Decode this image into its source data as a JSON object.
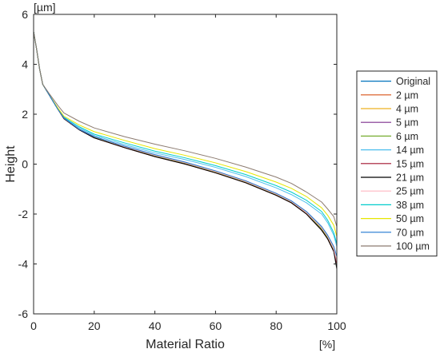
{
  "chart_data": {
    "type": "line",
    "xlabel": "Material Ratio",
    "ylabel": "Height",
    "x_unit": "[%]",
    "y_unit": "[µm]",
    "xlim": [
      0,
      100
    ],
    "ylim": [
      -6,
      6
    ],
    "xticks": [
      0,
      20,
      40,
      60,
      80,
      100
    ],
    "yticks": [
      -6,
      -4,
      -2,
      0,
      2,
      4,
      6
    ],
    "grid": false,
    "legend_position": "right",
    "x": [
      0,
      1,
      2,
      3,
      5,
      8,
      10,
      15,
      20,
      30,
      40,
      50,
      60,
      70,
      80,
      85,
      90,
      95,
      97,
      99,
      100
    ],
    "series": [
      {
        "name": "Original",
        "color": "#0072BD",
        "values": [
          5.3,
          4.6,
          3.8,
          3.2,
          2.8,
          2.2,
          1.85,
          1.4,
          1.1,
          0.7,
          0.35,
          0.05,
          -0.3,
          -0.7,
          -1.2,
          -1.5,
          -1.95,
          -2.55,
          -2.9,
          -3.4,
          -4.0
        ]
      },
      {
        "name": "2 µm",
        "color": "#D95319",
        "values": [
          5.3,
          4.6,
          3.8,
          3.2,
          2.8,
          2.2,
          1.85,
          1.4,
          1.1,
          0.7,
          0.35,
          0.05,
          -0.3,
          -0.7,
          -1.2,
          -1.5,
          -1.95,
          -2.55,
          -2.9,
          -3.4,
          -4.0
        ]
      },
      {
        "name": "4 µm",
        "color": "#EDB120",
        "values": [
          5.3,
          4.6,
          3.8,
          3.2,
          2.8,
          2.2,
          1.85,
          1.4,
          1.1,
          0.7,
          0.35,
          0.05,
          -0.3,
          -0.7,
          -1.2,
          -1.5,
          -1.95,
          -2.55,
          -2.9,
          -3.4,
          -4.0
        ]
      },
      {
        "name": "5 µm",
        "color": "#7E2F8E",
        "values": [
          5.3,
          4.6,
          3.8,
          3.2,
          2.8,
          2.2,
          1.82,
          1.38,
          1.08,
          0.68,
          0.33,
          0.02,
          -0.32,
          -0.72,
          -1.22,
          -1.52,
          -1.98,
          -2.6,
          -2.95,
          -3.45,
          -4.0
        ]
      },
      {
        "name": "6 µm",
        "color": "#77AC30",
        "values": [
          5.3,
          4.6,
          3.8,
          3.2,
          2.8,
          2.2,
          1.82,
          1.38,
          1.08,
          0.68,
          0.33,
          0.02,
          -0.32,
          -0.72,
          -1.22,
          -1.52,
          -1.98,
          -2.6,
          -2.95,
          -3.45,
          -4.0
        ]
      },
      {
        "name": "14 µm",
        "color": "#4DBEEE",
        "values": [
          5.3,
          4.6,
          3.8,
          3.2,
          2.8,
          2.2,
          1.85,
          1.45,
          1.15,
          0.78,
          0.45,
          0.18,
          -0.13,
          -0.5,
          -0.95,
          -1.22,
          -1.55,
          -2.0,
          -2.35,
          -2.85,
          -3.3
        ]
      },
      {
        "name": "15 µm",
        "color": "#A2142F",
        "values": [
          5.3,
          4.6,
          3.8,
          3.2,
          2.8,
          2.2,
          1.82,
          1.38,
          1.05,
          0.66,
          0.3,
          0.0,
          -0.35,
          -0.75,
          -1.25,
          -1.55,
          -2.0,
          -2.65,
          -3.0,
          -3.5,
          -4.0
        ]
      },
      {
        "name": "21 µm",
        "color": "#000000",
        "values": [
          5.3,
          4.6,
          3.8,
          3.2,
          2.8,
          2.2,
          1.82,
          1.38,
          1.05,
          0.66,
          0.3,
          0.0,
          -0.35,
          -0.75,
          -1.25,
          -1.55,
          -2.0,
          -2.65,
          -3.0,
          -3.5,
          -4.2
        ]
      },
      {
        "name": "25 µm",
        "color": "#FFB6C1",
        "values": [
          5.3,
          4.6,
          3.8,
          3.2,
          2.8,
          2.2,
          1.84,
          1.4,
          1.1,
          0.7,
          0.35,
          0.05,
          -0.3,
          -0.7,
          -1.2,
          -1.5,
          -1.95,
          -2.55,
          -2.9,
          -3.4,
          -3.9
        ]
      },
      {
        "name": "38 µm",
        "color": "#00CCCC",
        "values": [
          5.3,
          4.6,
          3.8,
          3.2,
          2.8,
          2.2,
          1.88,
          1.5,
          1.2,
          0.85,
          0.52,
          0.25,
          -0.06,
          -0.42,
          -0.86,
          -1.12,
          -1.45,
          -1.9,
          -2.25,
          -2.75,
          -3.2
        ]
      },
      {
        "name": "50 µm",
        "color": "#E6E600",
        "values": [
          5.3,
          4.6,
          3.8,
          3.2,
          2.8,
          2.25,
          1.92,
          1.57,
          1.3,
          0.95,
          0.62,
          0.35,
          0.05,
          -0.3,
          -0.72,
          -0.97,
          -1.3,
          -1.75,
          -2.05,
          -2.45,
          -2.9
        ]
      },
      {
        "name": "70 µm",
        "color": "#1F77D0",
        "values": [
          5.3,
          4.6,
          3.8,
          3.2,
          2.8,
          2.2,
          1.85,
          1.4,
          1.1,
          0.72,
          0.38,
          0.08,
          -0.27,
          -0.67,
          -1.17,
          -1.47,
          -1.9,
          -2.5,
          -2.85,
          -3.3,
          -3.7
        ]
      },
      {
        "name": "100 µm",
        "color": "#8C7B70",
        "values": [
          5.3,
          4.6,
          3.8,
          3.2,
          2.85,
          2.35,
          2.05,
          1.72,
          1.45,
          1.1,
          0.8,
          0.53,
          0.23,
          -0.12,
          -0.52,
          -0.77,
          -1.12,
          -1.52,
          -1.8,
          -2.1,
          -2.5
        ]
      }
    ]
  }
}
